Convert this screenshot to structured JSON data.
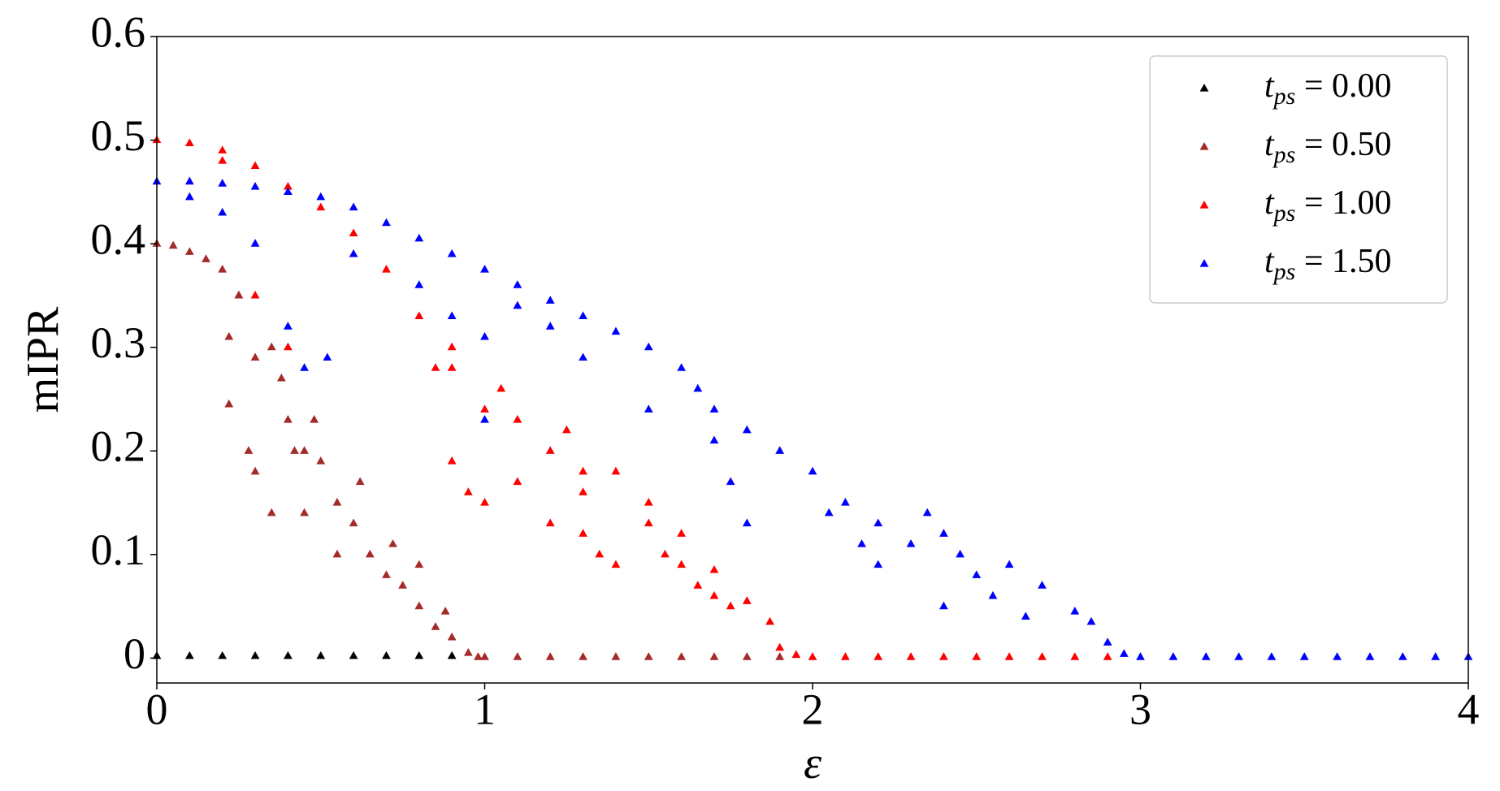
{
  "chart_data": {
    "type": "scatter",
    "xlabel": "ε",
    "ylabel": "mIPR",
    "xlim": [
      0,
      4
    ],
    "ylim": [
      -0.024,
      0.6
    ],
    "xticks": [
      0,
      1,
      2,
      3,
      4
    ],
    "yticks": [
      0,
      0.1,
      0.2,
      0.3,
      0.4,
      0.5,
      0.6
    ],
    "legend": "upper right",
    "series": [
      {
        "name": "tps = 0.00",
        "color": "#000000",
        "x": [
          0,
          0.1,
          0.2,
          0.3,
          0.4,
          0.5,
          0.6,
          0.7,
          0.8,
          0.9
        ],
        "y": [
          0.002,
          0.002,
          0.002,
          0.002,
          0.002,
          0.002,
          0.002,
          0.002,
          0.002,
          0.002
        ]
      },
      {
        "name": "tps = 0.50",
        "color": "#a52a2a",
        "x": [
          0,
          0.05,
          0.1,
          0.15,
          0.2,
          0.25,
          0.22,
          0.25,
          0.3,
          0.35,
          0.38,
          0.22,
          0.28,
          0.3,
          0.4,
          0.42,
          0.45,
          0.48,
          0.5,
          0.55,
          0.6,
          0.62,
          0.35,
          0.45,
          0.55,
          0.65,
          0.7,
          0.72,
          0.75,
          0.8,
          0.8,
          0.85,
          0.88,
          0.9,
          0.95,
          0.98,
          1.0,
          1.1,
          1.2,
          1.3,
          1.4,
          1.5,
          1.6,
          1.7,
          1.8,
          1.9
        ],
        "y": [
          0.4,
          0.398,
          0.392,
          0.385,
          0.375,
          0.35,
          0.31,
          0.35,
          0.29,
          0.3,
          0.27,
          0.245,
          0.2,
          0.18,
          0.23,
          0.2,
          0.2,
          0.23,
          0.19,
          0.15,
          0.13,
          0.17,
          0.14,
          0.14,
          0.1,
          0.1,
          0.08,
          0.11,
          0.07,
          0.05,
          0.09,
          0.03,
          0.045,
          0.02,
          0.005,
          0.001,
          0.001,
          0.001,
          0.001,
          0.001,
          0.001,
          0.001,
          0.001,
          0.001,
          0.001,
          0.001
        ]
      },
      {
        "name": "tps = 1.00",
        "color": "#ff0000",
        "x": [
          0,
          0.1,
          0.2,
          0.3,
          0.4,
          0.5,
          0.6,
          0.7,
          0.8,
          0.9,
          0.85,
          0.9,
          1.0,
          1.05,
          1.1,
          1.2,
          1.25,
          1.3,
          0.95,
          1.0,
          1.1,
          1.2,
          1.3,
          1.35,
          1.4,
          1.3,
          1.5,
          1.55,
          1.6,
          1.65,
          1.7,
          1.75,
          1.4,
          1.5,
          1.6,
          1.7,
          1.8,
          1.87,
          0.3,
          0.4,
          0.2,
          0.9,
          1.9,
          1.95,
          2.0,
          2.1,
          2.2,
          2.3,
          2.4,
          2.5,
          2.6,
          2.7,
          2.8,
          2.9
        ],
        "y": [
          0.5,
          0.497,
          0.49,
          0.475,
          0.455,
          0.435,
          0.41,
          0.375,
          0.33,
          0.28,
          0.28,
          0.3,
          0.24,
          0.26,
          0.23,
          0.2,
          0.22,
          0.18,
          0.16,
          0.15,
          0.17,
          0.13,
          0.12,
          0.1,
          0.09,
          0.16,
          0.13,
          0.1,
          0.09,
          0.07,
          0.06,
          0.05,
          0.18,
          0.15,
          0.12,
          0.085,
          0.055,
          0.035,
          0.35,
          0.3,
          0.48,
          0.19,
          0.01,
          0.003,
          0.001,
          0.001,
          0.001,
          0.001,
          0.001,
          0.001,
          0.001,
          0.001,
          0.001,
          0.001
        ]
      },
      {
        "name": "tps = 1.50",
        "color": "#0000ff",
        "x": [
          0,
          0.1,
          0.2,
          0.3,
          0.4,
          0.5,
          0.6,
          0.7,
          0.8,
          0.9,
          1.0,
          1.1,
          1.2,
          1.3,
          1.4,
          1.5,
          0.1,
          0.2,
          0.3,
          0.4,
          0.45,
          0.52,
          0.6,
          0.8,
          0.9,
          1.0,
          1.1,
          1.2,
          1.3,
          1.5,
          1.6,
          1.65,
          1.7,
          1.8,
          1.9,
          2.0,
          1.75,
          1.7,
          2.1,
          2.2,
          2.05,
          2.15,
          2.3,
          2.35,
          2.4,
          2.45,
          2.5,
          2.55,
          2.6,
          2.7,
          2.8,
          2.85,
          2.9,
          2.95,
          1.0,
          1.8,
          2.2,
          2.4,
          2.65,
          3.0,
          3.1,
          3.2,
          3.3,
          3.4,
          3.5,
          3.6,
          3.7,
          3.8,
          3.9,
          4.0
        ],
        "y": [
          0.46,
          0.46,
          0.458,
          0.455,
          0.45,
          0.445,
          0.435,
          0.42,
          0.405,
          0.39,
          0.375,
          0.36,
          0.345,
          0.33,
          0.315,
          0.3,
          0.445,
          0.43,
          0.4,
          0.32,
          0.28,
          0.29,
          0.39,
          0.36,
          0.33,
          0.31,
          0.34,
          0.32,
          0.29,
          0.24,
          0.28,
          0.26,
          0.24,
          0.22,
          0.2,
          0.18,
          0.17,
          0.21,
          0.15,
          0.13,
          0.14,
          0.11,
          0.11,
          0.14,
          0.12,
          0.1,
          0.08,
          0.06,
          0.09,
          0.07,
          0.045,
          0.035,
          0.015,
          0.004,
          0.23,
          0.13,
          0.09,
          0.05,
          0.04,
          0.001,
          0.001,
          0.001,
          0.001,
          0.001,
          0.001,
          0.001,
          0.001,
          0.001,
          0.001,
          0.001
        ]
      }
    ]
  }
}
